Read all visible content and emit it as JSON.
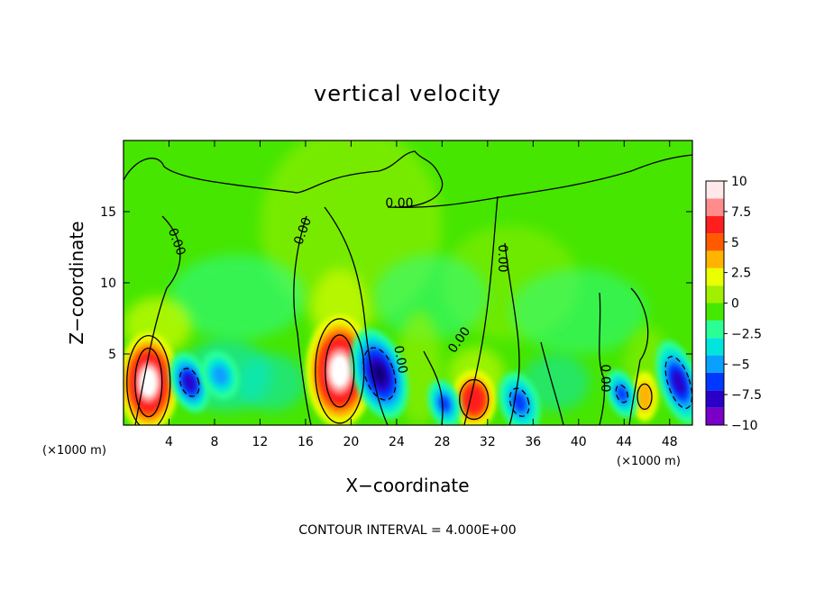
{
  "chart_data": {
    "type": "heatmap",
    "title": "vertical velocity",
    "xlabel": "X−coordinate",
    "ylabel": "Z−coordinate",
    "x_unit_left": "(×1000 m)",
    "x_unit_right": "(×1000 m)",
    "xlim": [
      0,
      50
    ],
    "ylim": [
      0,
      20
    ],
    "x_ticks": [
      4,
      8,
      12,
      16,
      20,
      24,
      28,
      32,
      36,
      40,
      44,
      48
    ],
    "x_tick_labels": [
      "4",
      "8",
      "12",
      "16",
      "20",
      "24",
      "28",
      "32",
      "36",
      "40",
      "44",
      "48"
    ],
    "y_ticks": [
      5,
      10,
      15
    ],
    "y_tick_labels": [
      "5",
      "10",
      "15"
    ],
    "colorbar": {
      "min": -10,
      "max": 10,
      "tick_values": [
        10,
        7.5,
        5,
        2.5,
        0,
        -2.5,
        -5,
        -7.5,
        -10
      ],
      "tick_labels": [
        "10",
        "7.5",
        "5",
        "2.5",
        "0",
        "−2.5",
        "−5",
        "−7.5",
        "−10"
      ],
      "colors": [
        "#7a00c8",
        "#2a00c8",
        "#0038ff",
        "#0aa0ff",
        "#00e6dc",
        "#2aff96",
        "#44e800",
        "#a0f000",
        "#eaff00",
        "#ffb400",
        "#ff5a00",
        "#ff1e1e",
        "#ff8c8c",
        "#ffe8e8"
      ]
    },
    "contour_labels": [
      "0.00",
      "0.00",
      "0.00",
      "0.00",
      "0.00",
      "0.00",
      "0.00"
    ],
    "contour_interval_text": "CONTOUR INTERVAL = 4.000E+00",
    "features": [
      {
        "name": "updraft-1",
        "x": 2.2,
        "z": 3.0,
        "w": 10
      },
      {
        "name": "updraft-2",
        "x": 19.0,
        "z": 3.8,
        "w": 10
      },
      {
        "name": "updraft-3",
        "x": 30.8,
        "z": 1.8,
        "w": 6
      },
      {
        "name": "updraft-4",
        "x": 45.8,
        "z": 2.0,
        "w": 3.5
      },
      {
        "name": "downdraft-1",
        "x": 5.8,
        "z": 3.0,
        "w": -7
      },
      {
        "name": "downdraft-2",
        "x": 22.5,
        "z": 3.6,
        "w": -9
      },
      {
        "name": "downdraft-3",
        "x": 48.8,
        "z": 3.0,
        "w": -7
      },
      {
        "name": "downdraft-4",
        "x": 34.8,
        "z": 1.6,
        "w": -4
      },
      {
        "name": "downdraft-5",
        "x": 28.2,
        "z": 1.5,
        "w": -3.5
      },
      {
        "name": "downdraft-6",
        "x": 43.8,
        "z": 2.2,
        "w": -3.5
      },
      {
        "name": "downdraft-7",
        "x": 8.5,
        "z": 3.5,
        "w": -3
      }
    ]
  }
}
